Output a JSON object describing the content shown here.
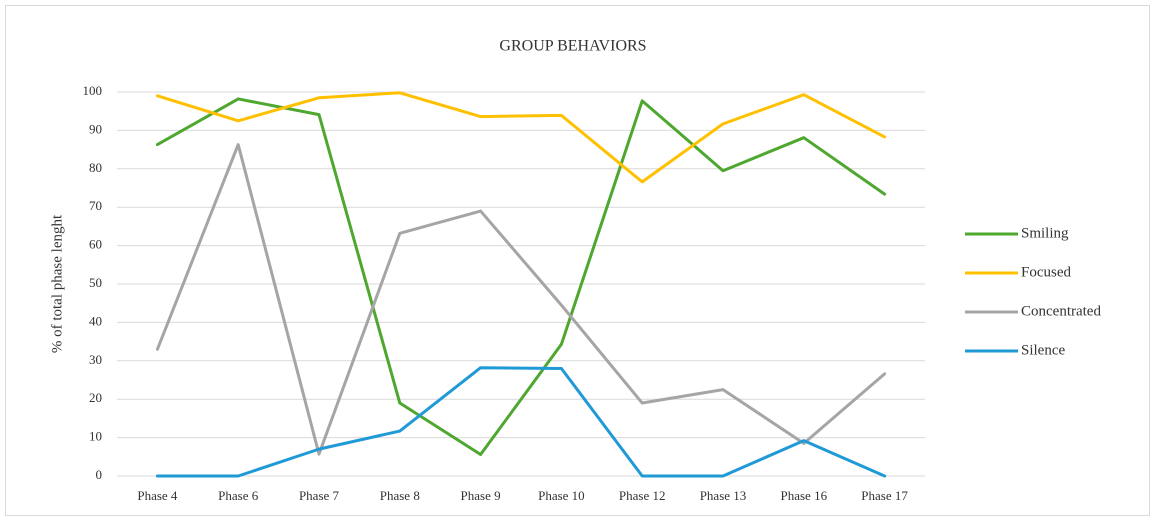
{
  "chart_data": {
    "type": "line",
    "title": "GROUP BEHAVIORS",
    "y_label": "% of total phase lenght",
    "categories": [
      "Phase 4",
      "Phase 6",
      "Phase 7",
      "Phase 8",
      "Phase 9",
      "Phase 10",
      "Phase 12",
      "Phase 13",
      "Phase 16",
      "Phase 17"
    ],
    "series": [
      {
        "name": "Smiling",
        "color": "#4ea72e",
        "values": [
          86.3,
          98.2,
          94.1,
          19,
          5.6,
          34.3,
          97.7,
          79.5,
          88.1,
          73.4
        ]
      },
      {
        "name": "Focused",
        "color": "#ffc000",
        "values": [
          99,
          92.5,
          98.5,
          99.8,
          93.6,
          93.9,
          76.6,
          91.7,
          99.3,
          88.3
        ]
      },
      {
        "name": "Concentrated",
        "color": "#a5a5a5",
        "values": [
          33,
          86.3,
          5.7,
          63.2,
          69,
          44.5,
          19,
          22.5,
          8.5,
          26.6
        ]
      },
      {
        "name": "Silence",
        "color": "#1f9ad6",
        "values": [
          0,
          0,
          7,
          11.7,
          28.2,
          28,
          0,
          0,
          9.2,
          0
        ]
      }
    ],
    "ylim": [
      0,
      100
    ],
    "yticks": [
      0,
      10,
      20,
      30,
      40,
      50,
      60,
      70,
      80,
      90,
      100
    ],
    "grid": true,
    "legend": "right"
  }
}
